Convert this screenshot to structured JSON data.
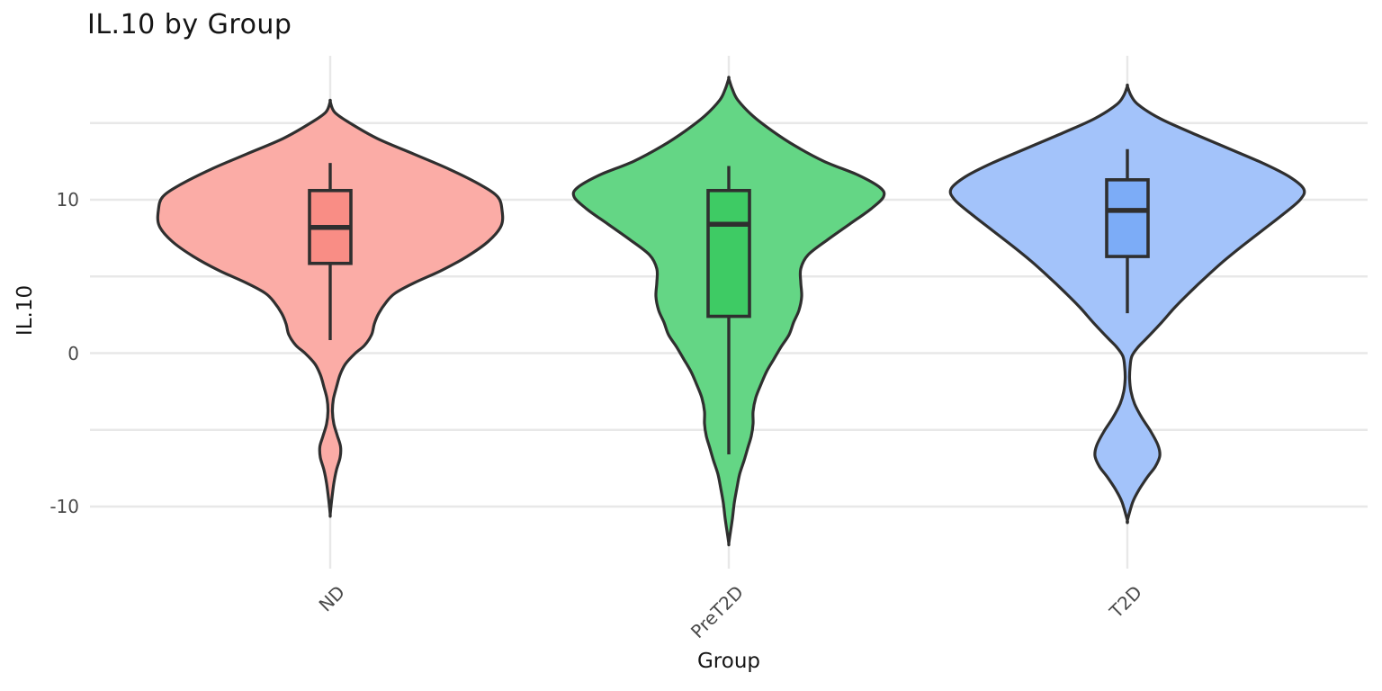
{
  "title": "IL.10 by Group",
  "chart_data": {
    "type": "violin",
    "title": "IL.10 by Group",
    "xlabel": "Group",
    "ylabel": "IL.10",
    "ylim": [
      -14,
      19.4
    ],
    "grid": "on",
    "grid_color": "#E8E8E8",
    "outline_color": "#2F2F2F",
    "y_ticks": [
      {
        "label": "10",
        "value": 10
      },
      {
        "label": "0",
        "value": 0
      },
      {
        "label": "-10",
        "value": -10
      }
    ],
    "y_gridline_values": [
      15,
      10,
      5,
      0,
      -5,
      -10
    ],
    "groups": [
      {
        "name": "ND",
        "fill_color": "#FBACA6",
        "box_fill_color": "#F98D85",
        "box_stats": {
          "whisker_high": 12.4,
          "q3": 10.6,
          "median": 8.2,
          "q1": 5.85,
          "whisker_low": 0.85
        },
        "density_profile": [
          [
            16.4,
            0
          ],
          [
            15.7,
            5
          ],
          [
            15,
            22
          ],
          [
            14,
            52
          ],
          [
            13,
            92
          ],
          [
            12,
            132
          ],
          [
            11,
            166
          ],
          [
            10.2,
            186
          ],
          [
            9.3,
            191
          ],
          [
            8.3,
            190
          ],
          [
            7.3,
            176
          ],
          [
            6.3,
            152
          ],
          [
            5.4,
            124
          ],
          [
            4.6,
            94
          ],
          [
            3.9,
            72
          ],
          [
            3.3,
            62
          ],
          [
            2.6,
            54
          ],
          [
            1.9,
            49
          ],
          [
            1.2,
            46
          ],
          [
            0.5,
            38
          ],
          [
            0,
            28
          ],
          [
            -0.7,
            17
          ],
          [
            -1.4,
            11
          ],
          [
            -2.2,
            7
          ],
          [
            -3,
            3.5
          ],
          [
            -3.8,
            2.5
          ],
          [
            -4.6,
            4
          ],
          [
            -5.4,
            8
          ],
          [
            -6.1,
            11.5
          ],
          [
            -6.8,
            11
          ],
          [
            -7.6,
            7
          ],
          [
            -8.5,
            4
          ],
          [
            -9.4,
            2
          ],
          [
            -10.5,
            0
          ]
        ]
      },
      {
        "name": "PreT2D",
        "fill_color": "#64D685",
        "box_fill_color": "#3ECB64",
        "box_stats": {
          "whisker_high": 12.2,
          "q3": 10.6,
          "median": 8.4,
          "q1": 2.4,
          "whisker_low": -6.6
        },
        "density_profile": [
          [
            17.9,
            0
          ],
          [
            17.2,
            4
          ],
          [
            16.5,
            10
          ],
          [
            15.5,
            26
          ],
          [
            14.5,
            48
          ],
          [
            13.5,
            74
          ],
          [
            12.5,
            106
          ],
          [
            11.6,
            144
          ],
          [
            10.8,
            168
          ],
          [
            10.2,
            172
          ],
          [
            9.4,
            158
          ],
          [
            8.4,
            134
          ],
          [
            7.4,
            110
          ],
          [
            6.4,
            88
          ],
          [
            5.5,
            80
          ],
          [
            4.6,
            80
          ],
          [
            3.7,
            81
          ],
          [
            2.8,
            78
          ],
          [
            2,
            72
          ],
          [
            1.2,
            67
          ],
          [
            0.4,
            58
          ],
          [
            -0.4,
            50
          ],
          [
            -1.2,
            42
          ],
          [
            -2,
            36
          ],
          [
            -2.9,
            30
          ],
          [
            -3.8,
            27
          ],
          [
            -4.6,
            27
          ],
          [
            -5.4,
            25
          ],
          [
            -6.2,
            21
          ],
          [
            -7,
            17
          ],
          [
            -7.9,
            12
          ],
          [
            -8.8,
            9
          ],
          [
            -9.8,
            6
          ],
          [
            -10.8,
            4
          ],
          [
            -11.6,
            2
          ],
          [
            -12.4,
            0
          ]
        ]
      },
      {
        "name": "T2D",
        "fill_color": "#A3C3FA",
        "box_fill_color": "#7CACF7",
        "box_stats": {
          "whisker_high": 13.3,
          "q3": 11.3,
          "median": 9.3,
          "q1": 6.3,
          "whisker_low": 2.6
        },
        "density_profile": [
          [
            17.4,
            0
          ],
          [
            16.8,
            4
          ],
          [
            16.2,
            12
          ],
          [
            15.3,
            36
          ],
          [
            14.4,
            70
          ],
          [
            13.4,
            110
          ],
          [
            12.4,
            150
          ],
          [
            11.5,
            180
          ],
          [
            10.7,
            196
          ],
          [
            10,
            192
          ],
          [
            9,
            172
          ],
          [
            8,
            150
          ],
          [
            7,
            128
          ],
          [
            6,
            107
          ],
          [
            5,
            88
          ],
          [
            4,
            70
          ],
          [
            3,
            53
          ],
          [
            2,
            38
          ],
          [
            1,
            22
          ],
          [
            0.4,
            12
          ],
          [
            -0.2,
            5
          ],
          [
            -0.9,
            3
          ],
          [
            -1.7,
            2.5
          ],
          [
            -2.5,
            4
          ],
          [
            -3.3,
            8
          ],
          [
            -4.2,
            16
          ],
          [
            -5.1,
            26
          ],
          [
            -6,
            34
          ],
          [
            -6.7,
            36
          ],
          [
            -7.4,
            31
          ],
          [
            -8.1,
            22
          ],
          [
            -8.9,
            13
          ],
          [
            -9.7,
            6
          ],
          [
            -10.9,
            0
          ]
        ]
      }
    ]
  }
}
